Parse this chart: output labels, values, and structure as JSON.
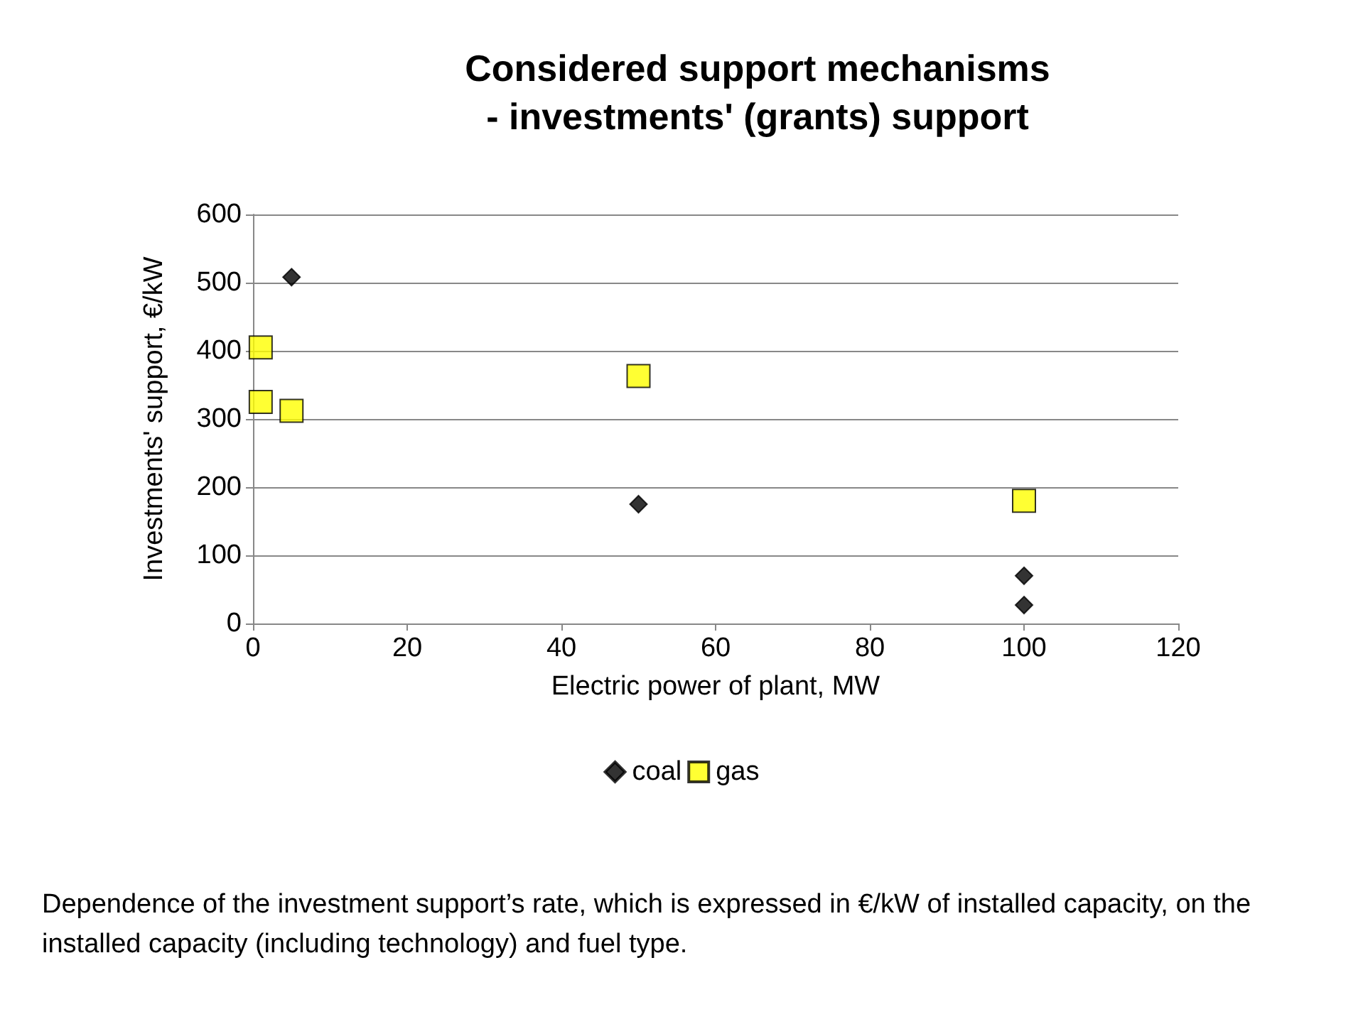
{
  "chart_data": {
    "type": "scatter",
    "title": "Considered support mechanisms\n- investments' (grants) support",
    "xlabel": "Electric power of plant, MW",
    "ylabel": "Investments' support, €/kW",
    "series": [
      {
        "name": "coal",
        "color": "#000000",
        "marker": "diamond",
        "x": [
          5,
          50,
          100,
          100
        ],
        "values": [
          508,
          175,
          70,
          27
        ]
      },
      {
        "name": "gas",
        "color": "#ffff00",
        "marker": "square",
        "x": [
          1,
          1,
          5,
          50,
          100
        ],
        "values": [
          405,
          325,
          312,
          363,
          180
        ]
      }
    ],
    "xlim": [
      0,
      120
    ],
    "xticks": [
      0,
      20,
      40,
      60,
      80,
      100,
      120
    ],
    "ylim": [
      0,
      600
    ],
    "yticks": [
      0,
      100,
      200,
      300,
      400,
      500,
      600
    ],
    "grid": "y",
    "legend": "bottom",
    "annotations": [
      "Dependence of the investment support’s rate, which is expressed in €/kW of installed capacity, on the installed capacity (including technology) and fuel type."
    ]
  }
}
